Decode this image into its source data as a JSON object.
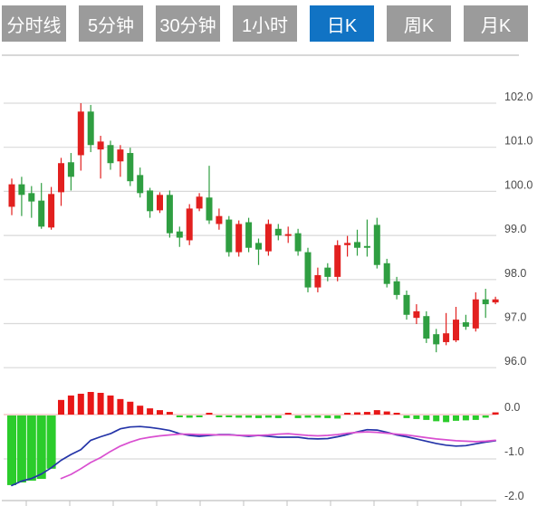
{
  "tabs": [
    {
      "label": "分时线",
      "active": false
    },
    {
      "label": "5分钟",
      "active": false
    },
    {
      "label": "30分钟",
      "active": false
    },
    {
      "label": "1小时",
      "active": false
    },
    {
      "label": "日K",
      "active": true
    },
    {
      "label": "周K",
      "active": false
    },
    {
      "label": "月K",
      "active": false
    }
  ],
  "colors": {
    "tab_inactive": "#9b9b9b",
    "tab_active": "#1173c4",
    "candle_up": "#e2201f",
    "candle_down": "#2f9e41",
    "hist_up": "#e81717",
    "hist_down": "#2bcc2b",
    "dif_line": "#2434a8",
    "dea_line": "#d94fd0",
    "grid": "#d9d9d9",
    "zero_line": "#f2aaaa",
    "axis": "#c0c0c0",
    "label": "#4a4a4a"
  },
  "chart_data": {
    "type": "candlestick",
    "title": "",
    "price_axis": {
      "tick_labels": [
        "102.0",
        "101.0",
        "100.0",
        "99.0",
        "98.0",
        "97.0",
        "96.0"
      ],
      "ticks": [
        102.0,
        101.0,
        100.0,
        99.0,
        98.0,
        97.0,
        96.0
      ],
      "ylim": [
        95.8,
        102.2
      ],
      "grid": true,
      "legend_position": "none"
    },
    "macd_axis": {
      "tick_labels": [
        "0.0",
        "-1.0",
        "-2.0"
      ],
      "ticks": [
        0.0,
        -1.0,
        -2.0
      ],
      "ylim": [
        -2.1,
        0.6
      ]
    },
    "candles_ohlc": [
      [
        99.65,
        100.29,
        99.46,
        100.16
      ],
      [
        100.16,
        100.33,
        99.44,
        99.92
      ],
      [
        99.96,
        100.12,
        99.4,
        99.77
      ],
      [
        99.79,
        100.19,
        99.15,
        99.2
      ],
      [
        99.18,
        100.1,
        99.13,
        99.94
      ],
      [
        99.98,
        100.76,
        99.67,
        100.64
      ],
      [
        100.66,
        100.87,
        100.02,
        100.33
      ],
      [
        100.82,
        102.0,
        100.47,
        101.81
      ],
      [
        101.81,
        101.96,
        100.89,
        101.05
      ],
      [
        100.95,
        101.26,
        100.29,
        101.13
      ],
      [
        101.05,
        101.15,
        100.49,
        100.64
      ],
      [
        100.68,
        101.05,
        100.33,
        100.95
      ],
      [
        100.87,
        100.99,
        100.12,
        100.23
      ],
      [
        100.37,
        100.54,
        99.86,
        99.96
      ],
      [
        100.02,
        100.08,
        99.4,
        99.55
      ],
      [
        99.57,
        99.98,
        99.51,
        99.92
      ],
      [
        99.92,
        100.02,
        98.95,
        99.05
      ],
      [
        99.09,
        99.2,
        98.74,
        98.95
      ],
      [
        98.89,
        99.71,
        98.78,
        99.61
      ],
      [
        99.61,
        99.96,
        99.55,
        99.88
      ],
      [
        99.86,
        100.58,
        99.26,
        99.34
      ],
      [
        99.26,
        99.61,
        99.13,
        99.44
      ],
      [
        99.36,
        99.44,
        98.52,
        98.62
      ],
      [
        98.62,
        99.34,
        98.52,
        99.26
      ],
      [
        99.3,
        99.4,
        98.62,
        98.72
      ],
      [
        98.83,
        98.93,
        98.33,
        98.68
      ],
      [
        98.64,
        99.36,
        98.54,
        99.26
      ],
      [
        99.15,
        99.26,
        98.89,
        99.0
      ],
      [
        98.99,
        99.2,
        98.83,
        99.03
      ],
      [
        99.05,
        99.15,
        98.54,
        98.64
      ],
      [
        98.62,
        98.72,
        97.71,
        97.82
      ],
      [
        97.82,
        98.27,
        97.71,
        98.1
      ],
      [
        98.27,
        98.37,
        97.96,
        98.06
      ],
      [
        98.06,
        98.89,
        97.96,
        98.78
      ],
      [
        98.78,
        98.99,
        98.52,
        98.83
      ],
      [
        98.85,
        99.13,
        98.54,
        98.72
      ],
      [
        98.76,
        99.36,
        98.52,
        98.72
      ],
      [
        99.24,
        99.4,
        98.25,
        98.33
      ],
      [
        98.37,
        98.47,
        97.82,
        97.9
      ],
      [
        97.96,
        98.06,
        97.55,
        97.65
      ],
      [
        97.65,
        97.75,
        97.09,
        97.2
      ],
      [
        97.13,
        97.44,
        96.99,
        97.28
      ],
      [
        97.17,
        97.28,
        96.56,
        96.66
      ],
      [
        96.76,
        96.88,
        96.35,
        96.53
      ],
      [
        96.58,
        97.24,
        96.51,
        96.78
      ],
      [
        96.62,
        97.38,
        96.58,
        97.09
      ],
      [
        97.03,
        97.2,
        96.86,
        96.93
      ],
      [
        96.89,
        97.71,
        96.82,
        97.55
      ],
      [
        97.55,
        97.79,
        97.13,
        97.44
      ],
      [
        97.48,
        97.61,
        97.44,
        97.55
      ]
    ],
    "macd": {
      "hist": [
        -1.57,
        -1.51,
        -1.47,
        -1.43,
        -1.2,
        0.33,
        0.43,
        0.47,
        0.51,
        0.49,
        0.43,
        0.35,
        0.29,
        0.2,
        0.14,
        0.1,
        0.06,
        -0.04,
        -0.05,
        -0.04,
        0.03,
        -0.02,
        -0.04,
        -0.05,
        -0.05,
        -0.06,
        -0.05,
        -0.06,
        0.03,
        -0.06,
        -0.05,
        -0.05,
        -0.06,
        -0.07,
        0.02,
        0.05,
        0.06,
        0.1,
        0.07,
        0.04,
        -0.06,
        -0.08,
        -0.1,
        -0.13,
        -0.15,
        -0.12,
        -0.11,
        -0.1,
        -0.05,
        0.05
      ],
      "dif": [
        -1.6,
        -1.5,
        -1.44,
        -1.34,
        -1.2,
        -1.03,
        -0.9,
        -0.79,
        -0.58,
        -0.5,
        -0.43,
        -0.32,
        -0.28,
        -0.27,
        -0.29,
        -0.32,
        -0.36,
        -0.43,
        -0.47,
        -0.49,
        -0.47,
        -0.45,
        -0.45,
        -0.47,
        -0.49,
        -0.47,
        -0.49,
        -0.51,
        -0.51,
        -0.51,
        -0.54,
        -0.55,
        -0.54,
        -0.5,
        -0.45,
        -0.39,
        -0.34,
        -0.35,
        -0.4,
        -0.46,
        -0.5,
        -0.55,
        -0.6,
        -0.65,
        -0.69,
        -0.71,
        -0.7,
        -0.66,
        -0.62,
        -0.59
      ],
      "dea": [
        null,
        null,
        null,
        null,
        null,
        -1.44,
        -1.35,
        -1.22,
        -1.08,
        -0.97,
        -0.83,
        -0.71,
        -0.62,
        -0.55,
        -0.51,
        -0.48,
        -0.46,
        -0.44,
        -0.44,
        -0.45,
        -0.45,
        -0.46,
        -0.46,
        -0.47,
        -0.47,
        -0.47,
        -0.46,
        -0.44,
        -0.43,
        -0.45,
        -0.47,
        -0.48,
        -0.47,
        -0.45,
        -0.42,
        -0.4,
        -0.39,
        -0.4,
        -0.42,
        -0.44,
        -0.46,
        -0.49,
        -0.52,
        -0.55,
        -0.57,
        -0.59,
        -0.6,
        -0.61,
        -0.6,
        -0.58
      ]
    }
  }
}
